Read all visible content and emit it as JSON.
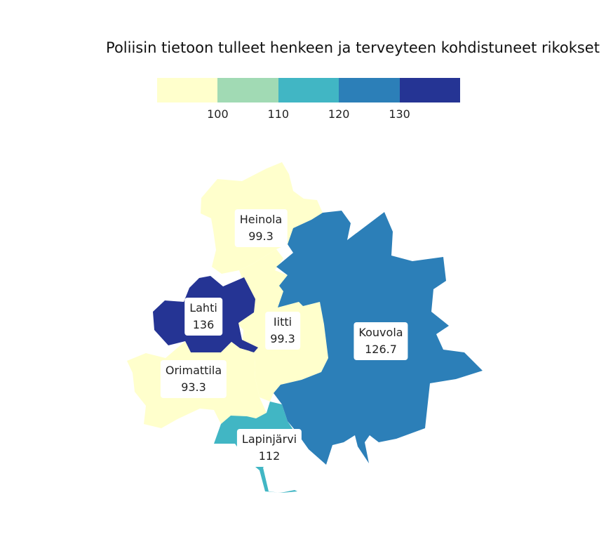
{
  "title": "Poliisin tietoon tulleet henkeen ja terveyteen kohdistuneet rikokset",
  "legend": {
    "colors": [
      "#ffffcc",
      "#a1dab4",
      "#41b6c4",
      "#2c7fb8",
      "#253494"
    ],
    "ticks": [
      "100",
      "110",
      "120",
      "130"
    ]
  },
  "regions": [
    {
      "id": "heinola",
      "name": "Heinola",
      "value": "99.3",
      "color": "#ffffcc"
    },
    {
      "id": "lahti",
      "name": "Lahti",
      "value": "136",
      "color": "#253494"
    },
    {
      "id": "iitti",
      "name": "Iitti",
      "value": "99.3",
      "color": "#ffffcc"
    },
    {
      "id": "kouvola",
      "name": "Kouvola",
      "value": "126.7",
      "color": "#2c7fb8"
    },
    {
      "id": "orimattila",
      "name": "Orimattila",
      "value": "93.3",
      "color": "#ffffcc"
    },
    {
      "id": "lapinjarvi",
      "name": "Lapinjärvi",
      "value": "112",
      "color": "#41b6c4"
    }
  ]
}
